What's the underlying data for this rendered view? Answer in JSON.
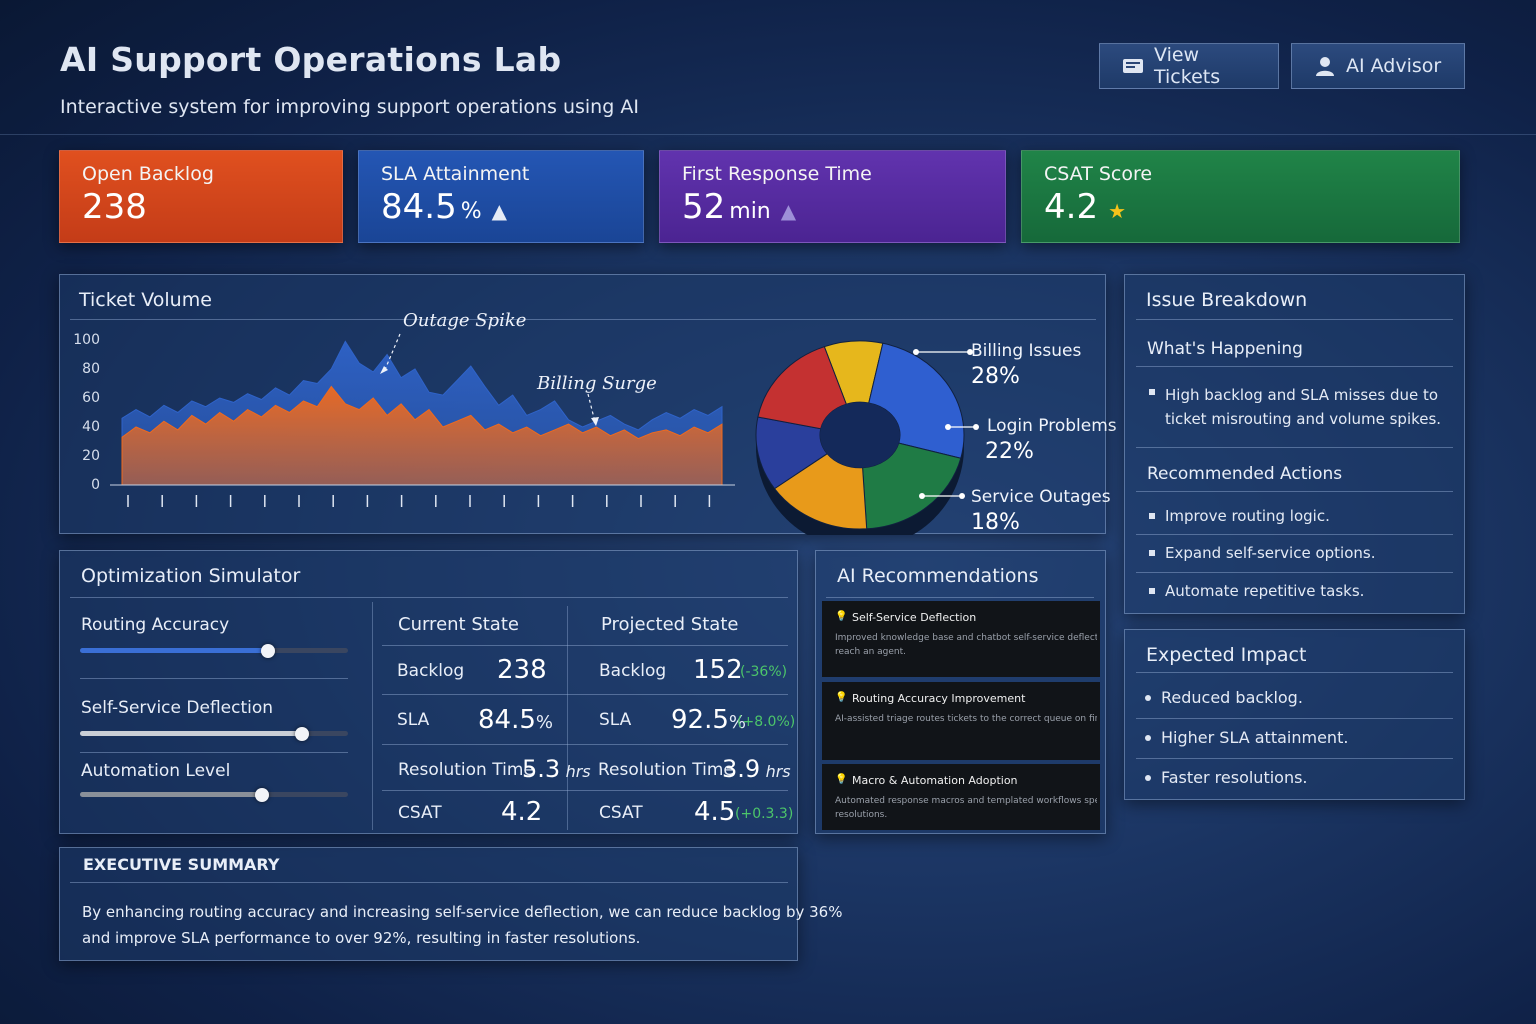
{
  "header": {
    "title": "AI Support Operations Lab",
    "subtitle": "Interactive system for improving support operations using AI",
    "buttons": [
      {
        "label": "View Tickets",
        "icon": "ticket-icon"
      },
      {
        "label": "AI Advisor",
        "icon": "user-icon"
      }
    ]
  },
  "kpis": [
    {
      "label": "Open Backlog",
      "value": "238",
      "unit": "",
      "icon": "",
      "color": "#d9451f"
    },
    {
      "label": "SLA Attainment",
      "value": "84.5",
      "unit": "%",
      "icon": "▲",
      "color": "#1f4fa8"
    },
    {
      "label": "First Response Time",
      "value": "52",
      "unit": "min",
      "icon": "▲",
      "color": "#5a2ea6"
    },
    {
      "label": "CSAT Score",
      "value": "4.2",
      "unit": "",
      "icon": "★",
      "color": "#1d7a43"
    }
  ],
  "ticket_volume": {
    "title": "Ticket Volume",
    "yticks": [
      "100",
      "80",
      "60",
      "40",
      "20",
      "0"
    ],
    "annotations": [
      "Outage Spike",
      "Billing Surge"
    ],
    "chart_data": {
      "type": "area",
      "ylim": [
        0,
        100
      ],
      "series": [
        {
          "values": [
            46,
            52,
            47,
            55,
            50,
            58,
            54,
            60,
            57,
            63,
            59,
            67,
            62,
            72,
            70,
            80,
            99,
            84,
            78,
            90,
            74,
            80,
            64,
            62,
            72,
            82,
            68,
            55,
            62,
            48,
            52,
            58,
            45,
            40,
            44,
            48,
            42,
            38,
            45,
            50,
            46,
            52,
            48,
            54
          ]
        },
        {
          "values": [
            33,
            40,
            36,
            44,
            38,
            48,
            42,
            50,
            44,
            52,
            47,
            55,
            50,
            58,
            54,
            68,
            56,
            52,
            60,
            48,
            56,
            45,
            52,
            40,
            44,
            48,
            38,
            42,
            36,
            40,
            34,
            38,
            42,
            36,
            40,
            34,
            38,
            32,
            36,
            38,
            34,
            40,
            36,
            42
          ]
        }
      ],
      "colors": [
        "#2f63c9",
        "#ef6a1e"
      ]
    }
  },
  "issue_pie": {
    "chart_data": {
      "type": "pie",
      "slices": [
        {
          "name": "Billing Issues",
          "value": 28,
          "color": "#2f5fd0"
        },
        {
          "name": "Login Problems",
          "value": 22,
          "color": "#1f7b45"
        },
        {
          "name": "Service Outages",
          "value": 18,
          "color": "#e89a1a"
        },
        {
          "name": "",
          "value": 14,
          "color": "#2a3f9c"
        },
        {
          "name": "",
          "value": 18,
          "color": "#c43131"
        }
      ],
      "extra_color": "#e6b71c"
    },
    "labels": [
      {
        "name": "Billing Issues",
        "pct": "28%"
      },
      {
        "name": "Login Problems",
        "pct": "22%"
      },
      {
        "name": "Service Outages",
        "pct": "18%"
      }
    ]
  },
  "issue_breakdown": {
    "title": "Issue Breakdown",
    "whats_happening_title": "What's Happening",
    "whats_happening_line1": "High backlog and SLA misses due to",
    "whats_happening_line2": "ticket misrouting and volume spikes.",
    "actions_title": "Recommended Actions",
    "actions": [
      "Improve routing logic.",
      "Expand self-service options.",
      "Automate repetitive tasks."
    ]
  },
  "expected_impact": {
    "title": "Expected Impact",
    "items": [
      "Reduced backlog.",
      "Higher SLA attainment.",
      "Faster resolutions."
    ]
  },
  "simulator": {
    "title": "Optimization Simulator",
    "sliders": [
      {
        "label": "Routing Accuracy",
        "level": 0.7
      },
      {
        "label": "Self-Service Deflection",
        "level": 0.83
      },
      {
        "label": "Automation Level",
        "level": 0.68
      }
    ],
    "current_title": "Current State",
    "projected_title": "Projected State",
    "rows": [
      {
        "label": "Backlog",
        "current": "238",
        "cunit": "",
        "projected": "152",
        "punit": "",
        "delta": "(-36%)"
      },
      {
        "label": "SLA",
        "current": "84.5",
        "cunit": "%",
        "projected": "92.5",
        "punit": "%",
        "delta": "(+8.0%)"
      },
      {
        "label": "Resolution Time",
        "current": "5.3",
        "cunit": "hrs",
        "projected": "3.9",
        "punit": "hrs",
        "delta": ""
      },
      {
        "label": "CSAT",
        "current": "4.2",
        "cunit": "",
        "projected": "4.5",
        "punit": "",
        "delta": "(+0.3.3)"
      }
    ]
  },
  "ai_recommendations": {
    "title": "AI Recommendations",
    "cards": [
      {
        "title": "Self-Service Deflection",
        "desc1": "Improved knowledge base and chatbot self-service deflects s",
        "desc2": "reach an agent."
      },
      {
        "title": "Routing Accuracy Improvement",
        "desc1": "AI-assisted triage routes tickets to the correct queue on first p",
        "desc2": ""
      },
      {
        "title": "Macro & Automation Adoption",
        "desc1": "Automated response macros and templated workflows speed",
        "desc2": "resolutions."
      }
    ]
  },
  "executive_summary": {
    "title": "EXECUTIVE SUMMARY",
    "line1": "By enhancing routing accuracy and increasing self-service deflection, we can reduce backlog by 36%",
    "line2": "and improve SLA performance to over 92%, resulting in faster resolutions."
  }
}
